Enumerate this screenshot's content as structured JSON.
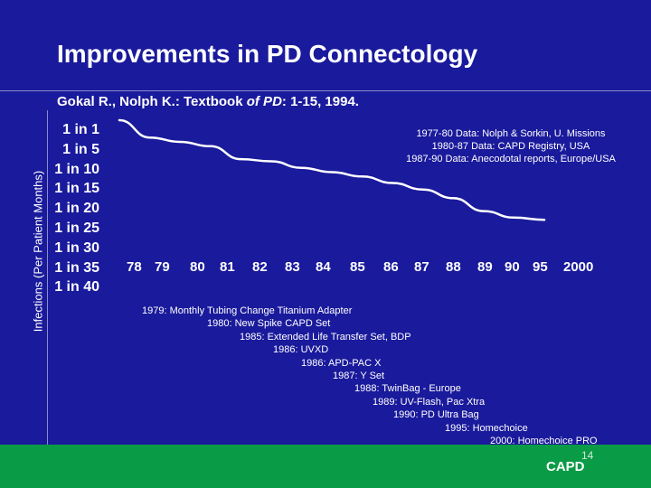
{
  "slide": {
    "title": "Improvements in PD Connectology",
    "citation_pre": "Gokal R., Nolph K.: Textbook ",
    "citation_italic": "of PD",
    "citation_post": ": 1-15, 1994.",
    "page_number": "14",
    "brand": "CAPD"
  },
  "colors": {
    "background": "#1a1a9c",
    "line": "#ffffff",
    "footer": "#0a9b46"
  },
  "chart_data": {
    "type": "line",
    "ylabel": "Infections (Per Patient Months)",
    "yticks": [
      "1 in 1",
      "1 in 5",
      "1 in 10",
      "1 in 15",
      "1 in 20",
      "1 in 25",
      "1 in 30",
      "1 in 35",
      "1 in 40"
    ],
    "xticks": [
      "78",
      "79",
      "80",
      "81",
      "82",
      "83",
      "84",
      "85",
      "86",
      "87",
      "88",
      "89",
      "90",
      "95",
      "2000"
    ],
    "series": [
      {
        "x": [
          "78",
          "79",
          "80",
          "81",
          "82",
          "83",
          "84",
          "85",
          "86",
          "87",
          "88",
          "89",
          "90",
          "95",
          "2000"
        ],
        "y": [
          1,
          5,
          6,
          7,
          10,
          10.5,
          12,
          13,
          14,
          15.5,
          17,
          19,
          22,
          23.5,
          24
        ]
      }
    ],
    "sources": [
      "1977-80 Data: Nolph & Sorkin, U. Missions",
      "1980-87 Data: CAPD Registry, USA",
      "1987-90 Data: Anecodotal reports, Europe/USA"
    ],
    "milestones": [
      "1979: Monthly Tubing Change Titanium Adapter",
      "1980: New Spike CAPD Set",
      "1985: Extended Life Transfer Set, BDP",
      "1986: UVXD",
      "1986: APD-PAC X",
      "1987: Y Set",
      "1988:  TwinBag - Europe",
      "1989: UV-Flash, Pac  Xtra",
      "1990: PD Ultra Bag",
      "1995:   Homechoice",
      "2000: Homechoice PRO"
    ]
  }
}
